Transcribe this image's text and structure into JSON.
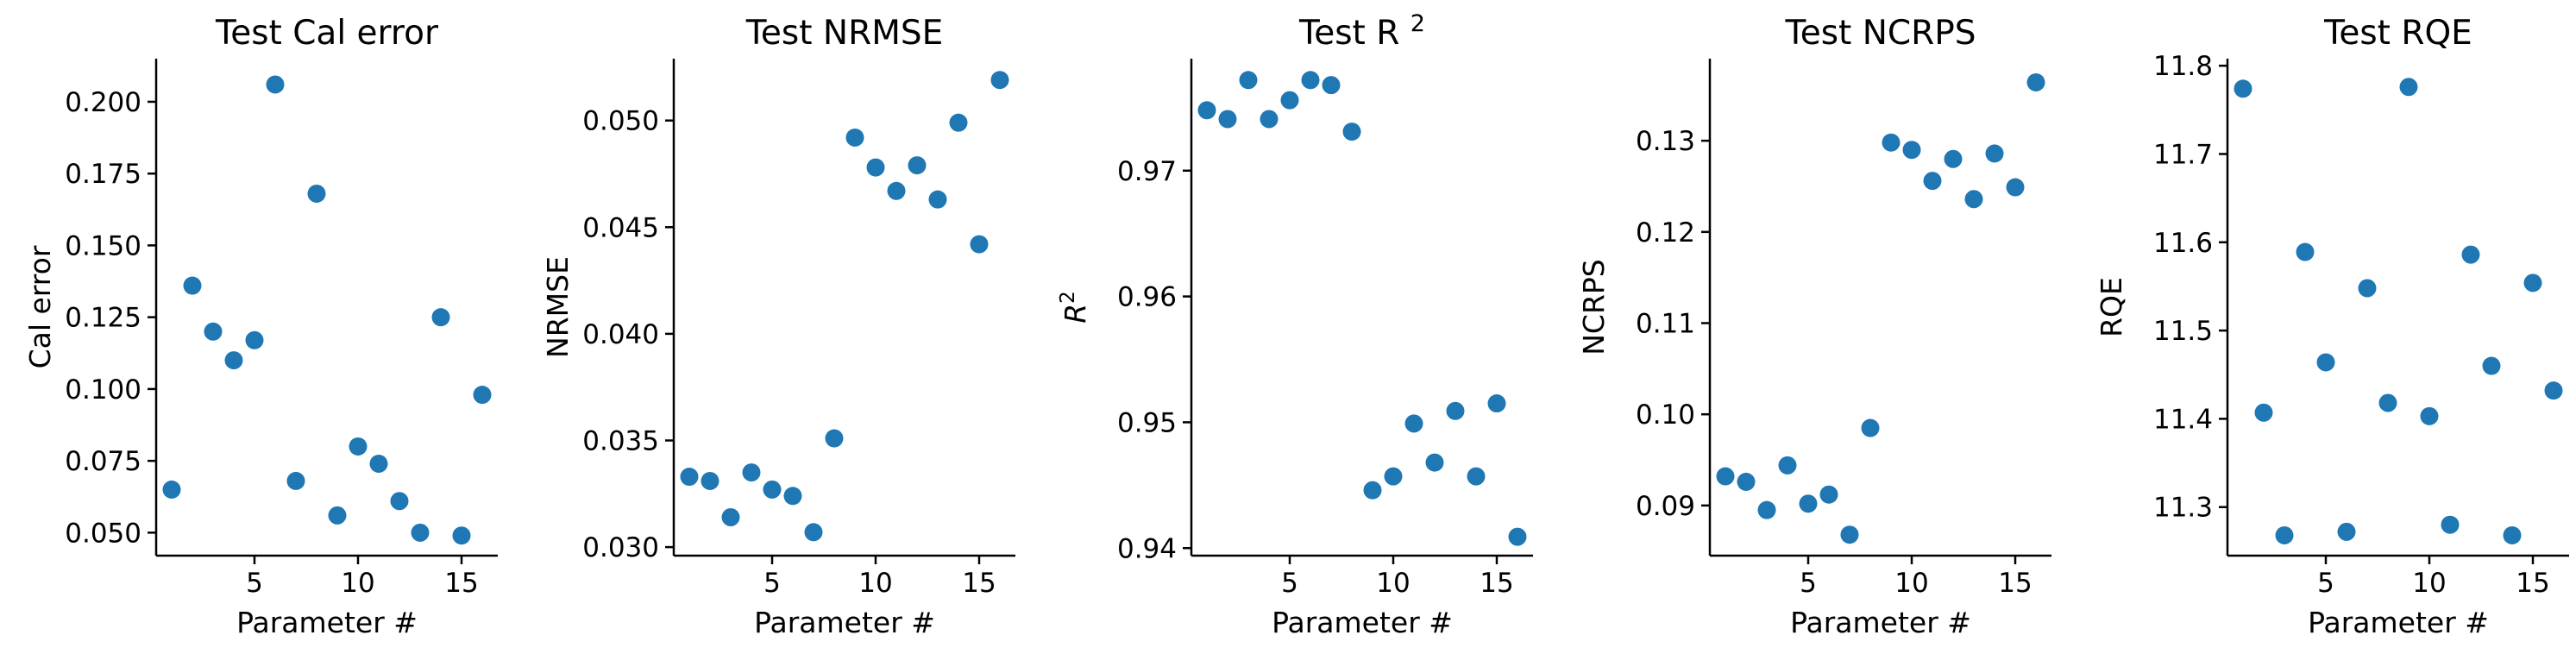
{
  "colors": {
    "marker": "#1f77b4",
    "axes": "#000000"
  },
  "chart_data": [
    {
      "type": "scatter",
      "title": "Test Cal error",
      "xlabel": "Parameter #",
      "ylabel": "Cal error",
      "xlim": [
        0.25,
        16.75
      ],
      "ylim": [
        0.042,
        0.215
      ],
      "xticks": [
        5,
        10,
        15
      ],
      "yticks": [
        0.05,
        0.075,
        0.1,
        0.125,
        0.15,
        0.175,
        0.2
      ],
      "yticklabels": [
        "0.050",
        "0.075",
        "0.100",
        "0.125",
        "0.150",
        "0.175",
        "0.200"
      ],
      "grid": false,
      "x": [
        1,
        2,
        3,
        4,
        5,
        6,
        7,
        8,
        9,
        10,
        11,
        12,
        13,
        14,
        15,
        16
      ],
      "y": [
        0.065,
        0.136,
        0.12,
        0.11,
        0.117,
        0.206,
        0.068,
        0.168,
        0.056,
        0.08,
        0.074,
        0.061,
        0.05,
        0.125,
        0.049,
        0.098
      ]
    },
    {
      "type": "scatter",
      "title": "Test NRMSE",
      "xlabel": "Parameter #",
      "ylabel": "NRMSE",
      "xlim": [
        0.25,
        16.75
      ],
      "ylim": [
        0.0296,
        0.0529
      ],
      "xticks": [
        5,
        10,
        15
      ],
      "yticks": [
        0.03,
        0.035,
        0.04,
        0.045,
        0.05
      ],
      "yticklabels": [
        "0.030",
        "0.035",
        "0.040",
        "0.045",
        "0.050"
      ],
      "grid": false,
      "x": [
        1,
        2,
        3,
        4,
        5,
        6,
        7,
        8,
        9,
        10,
        11,
        12,
        13,
        14,
        15,
        16
      ],
      "y": [
        0.0333,
        0.0331,
        0.0314,
        0.0335,
        0.0327,
        0.0324,
        0.0307,
        0.0351,
        0.0492,
        0.0478,
        0.0467,
        0.0479,
        0.0463,
        0.0499,
        0.0442,
        0.0519
      ]
    },
    {
      "type": "scatter",
      "title": "Test R",
      "title_sup": "2",
      "xlabel": "Parameter #",
      "ylabel": "R",
      "ylabel_sup": "2",
      "xlim": [
        0.25,
        16.75
      ],
      "ylim": [
        0.9394,
        0.9789
      ],
      "xticks": [
        5,
        10,
        15
      ],
      "yticks": [
        0.94,
        0.95,
        0.96,
        0.97
      ],
      "yticklabels": [
        "0.94",
        "0.95",
        "0.96",
        "0.97"
      ],
      "grid": false,
      "x": [
        1,
        2,
        3,
        4,
        5,
        6,
        7,
        8,
        9,
        10,
        11,
        12,
        13,
        14,
        15,
        16
      ],
      "y": [
        0.9748,
        0.9741,
        0.9772,
        0.9741,
        0.9756,
        0.9772,
        0.9768,
        0.9731,
        0.9446,
        0.9457,
        0.9499,
        0.9468,
        0.9509,
        0.9457,
        0.9515,
        0.9409
      ]
    },
    {
      "type": "scatter",
      "title": "Test NCRPS",
      "xlabel": "Parameter #",
      "ylabel": "NCRPS",
      "xlim": [
        0.25,
        16.75
      ],
      "ylim": [
        0.0845,
        0.139
      ],
      "xticks": [
        5,
        10,
        15
      ],
      "yticks": [
        0.09,
        0.1,
        0.11,
        0.12,
        0.13
      ],
      "yticklabels": [
        "0.09",
        "0.10",
        "0.11",
        "0.12",
        "0.13"
      ],
      "grid": false,
      "x": [
        1,
        2,
        3,
        4,
        5,
        6,
        7,
        8,
        9,
        10,
        11,
        12,
        13,
        14,
        15,
        16
      ],
      "y": [
        0.0932,
        0.0926,
        0.0895,
        0.0944,
        0.0902,
        0.0912,
        0.0868,
        0.0985,
        0.1298,
        0.129,
        0.1256,
        0.128,
        0.1236,
        0.1286,
        0.1249,
        0.1364
      ]
    },
    {
      "type": "scatter",
      "title": "Test RQE",
      "xlabel": "Parameter #",
      "ylabel": "RQE",
      "xlim": [
        0.25,
        16.75
      ],
      "ylim": [
        11.245,
        11.808
      ],
      "xticks": [
        5,
        10,
        15
      ],
      "yticks": [
        11.3,
        11.4,
        11.5,
        11.6,
        11.7,
        11.8
      ],
      "yticklabels": [
        "11.3",
        "11.4",
        "11.5",
        "11.6",
        "11.7",
        "11.8"
      ],
      "grid": false,
      "x": [
        1,
        2,
        3,
        4,
        5,
        6,
        7,
        8,
        9,
        10,
        11,
        12,
        13,
        14,
        15,
        16
      ],
      "y": [
        11.774,
        11.407,
        11.268,
        11.589,
        11.464,
        11.272,
        11.548,
        11.418,
        11.776,
        11.403,
        11.28,
        11.586,
        11.46,
        11.268,
        11.554,
        11.432
      ]
    }
  ]
}
